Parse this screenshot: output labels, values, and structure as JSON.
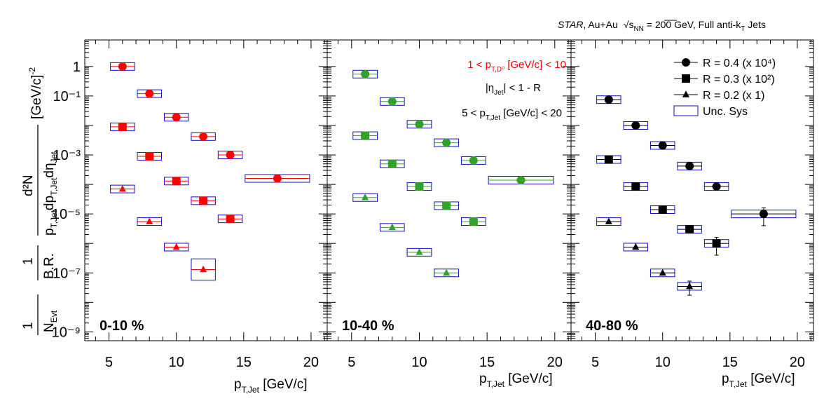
{
  "header": {
    "experiment": "STAR",
    "system": ", Au+Au",
    "energy_sqrt": "s",
    "energy_sub": "NN",
    "energy_value": " = 200 GeV, Full anti-k",
    "energy_k_sub": "T",
    "energy_tail": " Jets"
  },
  "y_axis_title": {
    "n_evt": "N",
    "n_evt_sub": "Evt",
    "br": "B.R.",
    "one": "1",
    "numerator": "d²N",
    "denom": "p",
    "denom_sub": "T,Jet",
    "denom_tail": "dp",
    "denom_sub2": "T,Jet",
    "denom_tail2": "dη",
    "denom_sub3": "Jet",
    "units": "[GeV/c]",
    "units_exp": "-2"
  },
  "x_axis_title": {
    "main": "p",
    "sub": "T,Jet",
    "units": " [GeV/c]"
  },
  "info": {
    "line1_a": "1 < p",
    "line1_sub": "T,D⁰",
    "line1_b": " [GeV/c] < 10",
    "line2_a": "|η",
    "line2_sub": "Jet",
    "line2_b": "| < 1 - R",
    "line3_a": "5 < p",
    "line3_sub": "T,Jet",
    "line3_b": " [GeV/c] < 20"
  },
  "legend": [
    {
      "marker": "circle",
      "label": "R = 0.4 (x 10⁴)"
    },
    {
      "marker": "square",
      "label": "R = 0.3 (x 10²)"
    },
    {
      "marker": "triangle",
      "label": "R = 0.2 (x 1)"
    },
    {
      "marker": "box",
      "label": "Unc. Sys"
    }
  ],
  "chart_data": [
    {
      "type": "scatter",
      "panel_label": "0-10 %",
      "color": "#ff0000",
      "sys_box_color": "#1010c0",
      "band_color": "#ff0000",
      "xlim": [
        3.2,
        21.2
      ],
      "ylim_log10": [
        -9.3,
        0.9
      ],
      "x_ticks": [
        5,
        10,
        15,
        20
      ],
      "y_ticks": [
        "1",
        "10⁻¹",
        "10⁻³",
        "10⁻⁵",
        "10⁻⁷",
        "10⁻⁹"
      ],
      "series": [
        {
          "marker": "circle",
          "x": [
            6,
            8,
            10,
            12,
            14,
            17.5
          ],
          "x_lo": [
            5,
            7,
            9,
            11,
            13,
            15
          ],
          "x_hi": [
            7,
            9,
            11,
            13,
            15,
            20
          ],
          "y": [
            1.0,
            0.12,
            0.019,
            0.0042,
            0.001,
            0.00016
          ]
        },
        {
          "marker": "square",
          "x": [
            6,
            8,
            10,
            12,
            14
          ],
          "x_lo": [
            5,
            7,
            9,
            11,
            13
          ],
          "x_hi": [
            7,
            9,
            11,
            13,
            15
          ],
          "y": [
            0.009,
            0.0009,
            0.00013,
            2.8e-05,
            6.8e-06
          ]
        },
        {
          "marker": "triangle",
          "x": [
            6,
            8,
            10,
            12
          ],
          "x_lo": [
            5,
            7,
            9,
            11
          ],
          "x_hi": [
            7,
            9,
            11,
            13
          ],
          "y": [
            7e-05,
            5.5e-06,
            7.5e-07,
            1.3e-07
          ]
        }
      ]
    },
    {
      "type": "scatter",
      "panel_label": "10-40 %",
      "color": "#33a02c",
      "sys_box_color": "#1010c0",
      "band_color": "#33a02c",
      "xlim": [
        3.2,
        21.2
      ],
      "ylim_log10": [
        -9.3,
        0.9
      ],
      "x_ticks": [
        5,
        10,
        15,
        20
      ],
      "series": [
        {
          "marker": "circle",
          "x": [
            6,
            8,
            10,
            12,
            14,
            17.5
          ],
          "x_lo": [
            5,
            7,
            9,
            11,
            13,
            15
          ],
          "x_hi": [
            7,
            9,
            11,
            13,
            15,
            20
          ],
          "y": [
            0.55,
            0.065,
            0.011,
            0.0026,
            0.00065,
            0.00014
          ]
        },
        {
          "marker": "square",
          "x": [
            6,
            8,
            10,
            12,
            14
          ],
          "x_lo": [
            5,
            7,
            9,
            11,
            13
          ],
          "x_hi": [
            7,
            9,
            11,
            13,
            15
          ],
          "y": [
            0.0045,
            0.0005,
            8.5e-05,
            1.9e-05,
            5.5e-06
          ]
        },
        {
          "marker": "triangle",
          "x": [
            6,
            8,
            10,
            12
          ],
          "x_lo": [
            5,
            7,
            9,
            11
          ],
          "x_hi": [
            7,
            9,
            11,
            13
          ],
          "y": [
            3.6e-05,
            3.5e-06,
            5e-07,
            1e-07
          ]
        }
      ]
    },
    {
      "type": "scatter",
      "panel_label": "40-80 %",
      "color": "#000000",
      "sys_box_color": "#1010c0",
      "band_color": "#000000",
      "xlim": [
        3.2,
        21.2
      ],
      "ylim_log10": [
        -9.3,
        0.9
      ],
      "x_ticks": [
        5,
        10,
        15,
        20
      ],
      "series": [
        {
          "marker": "circle",
          "x": [
            6,
            8,
            10,
            12,
            14,
            17.5
          ],
          "x_lo": [
            5,
            7,
            9,
            11,
            13,
            15
          ],
          "x_hi": [
            7,
            9,
            11,
            13,
            15,
            20
          ],
          "y": [
            0.075,
            0.01,
            0.0021,
            0.00042,
            8.5e-05,
            1e-05
          ],
          "err_rel": [
            0,
            0,
            0,
            0,
            0.2,
            0.6
          ]
        },
        {
          "marker": "square",
          "x": [
            6,
            8,
            10,
            12,
            14
          ],
          "x_lo": [
            5,
            7,
            9,
            11,
            13
          ],
          "x_hi": [
            7,
            9,
            11,
            13,
            15
          ],
          "y": [
            0.0007,
            8.5e-05,
            1.4e-05,
            3e-06,
            1e-06
          ],
          "err_rel": [
            0,
            0,
            0,
            0,
            0.6
          ]
        },
        {
          "marker": "triangle",
          "x": [
            6,
            8,
            10,
            12
          ],
          "x_lo": [
            5,
            7,
            9,
            11
          ],
          "x_hi": [
            7,
            9,
            11,
            13
          ],
          "y": [
            5.5e-06,
            7.5e-07,
            1e-07,
            3.5e-08
          ],
          "err_rel": [
            0,
            0,
            0,
            0.5
          ]
        }
      ]
    }
  ]
}
